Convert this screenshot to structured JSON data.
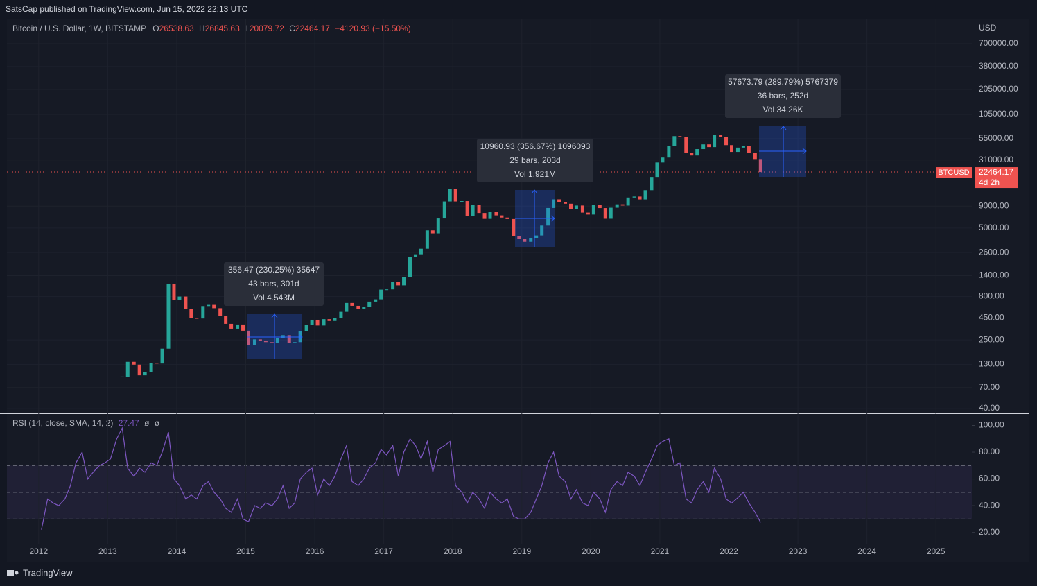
{
  "header": {
    "publisher": "SatsCap published on TradingView.com, Jun 15, 2022 22:13 UTC"
  },
  "footer": {
    "brand": "TradingView"
  },
  "chart_data": [
    {
      "type": "candlestick",
      "title": "Bitcoin / U.S. Dollar, 1W, BITSTAMP",
      "ohlc_legend": {
        "open_label": "O",
        "open": 26538.63,
        "high_label": "H",
        "high": 26845.63,
        "low_label": "L",
        "low": 20079.72,
        "close_label": "C",
        "close": 22464.17,
        "change": "−4120.93 (−15.50%)"
      },
      "currency": "USD",
      "symbol_tag": "BTCUSD",
      "last_price": 22464.17,
      "countdown": "4d 2h",
      "up_color": "#26a69a",
      "down_color": "#ef5350",
      "log_scale": true,
      "grid": true,
      "xlim": [
        2011.54,
        2025.52
      ],
      "ylim": [
        35,
        1340000
      ],
      "yticks": [
        {
          "value": 700000,
          "label": "700000.00"
        },
        {
          "value": 380000,
          "label": "380000.00"
        },
        {
          "value": 205000,
          "label": "205000.00"
        },
        {
          "value": 105000,
          "label": "105000.00"
        },
        {
          "value": 55000,
          "label": "55000.00"
        },
        {
          "value": 31000,
          "label": "31000.00"
        },
        {
          "value": 9000,
          "label": "9000.00"
        },
        {
          "value": 5000,
          "label": "5000.00"
        },
        {
          "value": 2600,
          "label": "2600.00"
        },
        {
          "value": 1400,
          "label": "1400.00"
        },
        {
          "value": 800,
          "label": "800.00"
        },
        {
          "value": 450,
          "label": "450.00"
        },
        {
          "value": 250,
          "label": "250.00"
        },
        {
          "value": 130,
          "label": "130.00"
        },
        {
          "value": 70,
          "label": "70.00"
        },
        {
          "value": 40,
          "label": "40.00"
        }
      ],
      "x": [
        2013.21,
        2013.29,
        2013.38,
        2013.46,
        2013.54,
        2013.63,
        2013.71,
        2013.79,
        2013.88,
        2013.96,
        2014.04,
        2014.13,
        2014.21,
        2014.29,
        2014.38,
        2014.46,
        2014.54,
        2014.63,
        2014.71,
        2014.79,
        2014.88,
        2014.96,
        2015.04,
        2015.13,
        2015.21,
        2015.29,
        2015.38,
        2015.46,
        2015.54,
        2015.63,
        2015.71,
        2015.79,
        2015.88,
        2015.96,
        2016.04,
        2016.13,
        2016.21,
        2016.29,
        2016.38,
        2016.46,
        2016.54,
        2016.63,
        2016.71,
        2016.79,
        2016.88,
        2016.96,
        2017.04,
        2017.13,
        2017.21,
        2017.29,
        2017.38,
        2017.46,
        2017.54,
        2017.63,
        2017.71,
        2017.79,
        2017.88,
        2017.96,
        2018.04,
        2018.13,
        2018.21,
        2018.29,
        2018.38,
        2018.46,
        2018.54,
        2018.63,
        2018.71,
        2018.79,
        2018.88,
        2018.96,
        2019.04,
        2019.13,
        2019.21,
        2019.29,
        2019.38,
        2019.46,
        2019.54,
        2019.63,
        2019.71,
        2019.79,
        2019.88,
        2019.96,
        2020.04,
        2020.13,
        2020.21,
        2020.29,
        2020.38,
        2020.46,
        2020.54,
        2020.63,
        2020.71,
        2020.79,
        2020.88,
        2020.96,
        2021.04,
        2021.13,
        2021.21,
        2021.29,
        2021.38,
        2021.46,
        2021.54,
        2021.63,
        2021.71,
        2021.79,
        2021.88,
        2021.96,
        2022.04,
        2022.13,
        2022.21,
        2022.29,
        2022.38,
        2022.46
      ],
      "values": [
        93,
        139,
        129,
        97,
        106,
        135,
        133,
        198,
        1130,
        730,
        800,
        570,
        450,
        445,
        620,
        640,
        585,
        480,
        385,
        338,
        378,
        320,
        217,
        254,
        244,
        236,
        230,
        263,
        284,
        230,
        236,
        314,
        377,
        430,
        368,
        437,
        416,
        448,
        531,
        673,
        624,
        575,
        609,
        698,
        742,
        963,
        970,
        1190,
        1080,
        1350,
        2300,
        2480,
        2875,
        4700,
        4340,
        6470,
        10200,
        14150,
        10200,
        10300,
        6900,
        9250,
        7500,
        6400,
        7730,
        7030,
        6630,
        6370,
        4040,
        3740,
        3460,
        3850,
        4100,
        5350,
        8570,
        10800,
        10080,
        9600,
        8300,
        9150,
        7570,
        7190,
        9350,
        8550,
        6420,
        8630,
        9450,
        9140,
        11350,
        11650,
        10780,
        13800,
        19700,
        28990,
        33100,
        45200,
        58800,
        57700,
        37300,
        35000,
        41500,
        47100,
        43800,
        61300,
        57000,
        46200,
        38500,
        43200,
        45500,
        37700,
        31800,
        22464.17
      ],
      "annotations": [
        {
          "lines": [
            "356.47 (230.25%) 35647",
            "43 bars, 301d",
            "Vol 4.543M"
          ]
        },
        {
          "lines": [
            "10960.93 (356.67%) 1096093",
            "29 bars, 203d",
            "Vol 1.921M"
          ]
        },
        {
          "lines": [
            "57673.79 (289.79%) 5767379",
            "36 bars, 252d",
            "Vol 34.26K"
          ]
        }
      ]
    },
    {
      "type": "line",
      "title": "RSI (14, close, SMA, 14, 2)",
      "legend_values": [
        "27.47",
        "ø",
        "ø"
      ],
      "color": "#7e57c2",
      "bands": [
        70,
        50,
        30
      ],
      "xlim": [
        2011.54,
        2025.52
      ],
      "ylim": [
        11,
        107
      ],
      "yticks": [
        {
          "value": 100,
          "label": "100.00"
        },
        {
          "value": 80,
          "label": "80.00"
        },
        {
          "value": 60,
          "label": "60.00"
        },
        {
          "value": 40,
          "label": "40.00"
        },
        {
          "value": 20,
          "label": "20.00"
        }
      ],
      "xticks": [
        2012,
        2013,
        2014,
        2015,
        2016,
        2017,
        2018,
        2019,
        2020,
        2021,
        2022,
        2023,
        2024,
        2025
      ],
      "x": [
        2012.04,
        2012.13,
        2012.21,
        2012.29,
        2012.38,
        2012.46,
        2012.54,
        2012.63,
        2012.71,
        2012.79,
        2012.88,
        2012.96,
        2013.04,
        2013.13,
        2013.21,
        2013.29,
        2013.38,
        2013.46,
        2013.54,
        2013.63,
        2013.71,
        2013.79,
        2013.88,
        2013.96,
        2014.04,
        2014.13,
        2014.21,
        2014.29,
        2014.38,
        2014.46,
        2014.54,
        2014.63,
        2014.71,
        2014.79,
        2014.88,
        2014.96,
        2015.04,
        2015.13,
        2015.21,
        2015.29,
        2015.38,
        2015.46,
        2015.54,
        2015.63,
        2015.71,
        2015.79,
        2015.88,
        2015.96,
        2016.04,
        2016.13,
        2016.21,
        2016.29,
        2016.38,
        2016.46,
        2016.54,
        2016.63,
        2016.71,
        2016.79,
        2016.88,
        2016.96,
        2017.04,
        2017.13,
        2017.21,
        2017.29,
        2017.38,
        2017.46,
        2017.54,
        2017.63,
        2017.71,
        2017.79,
        2017.88,
        2017.96,
        2018.04,
        2018.13,
        2018.21,
        2018.29,
        2018.38,
        2018.46,
        2018.54,
        2018.63,
        2018.71,
        2018.79,
        2018.88,
        2018.96,
        2019.04,
        2019.13,
        2019.21,
        2019.29,
        2019.38,
        2019.46,
        2019.54,
        2019.63,
        2019.71,
        2019.79,
        2019.88,
        2019.96,
        2020.04,
        2020.13,
        2020.21,
        2020.29,
        2020.38,
        2020.46,
        2020.54,
        2020.63,
        2020.71,
        2020.79,
        2020.88,
        2020.96,
        2021.04,
        2021.13,
        2021.21,
        2021.29,
        2021.38,
        2021.46,
        2021.54,
        2021.63,
        2021.71,
        2021.79,
        2021.88,
        2021.96,
        2022.04,
        2022.13,
        2022.21,
        2022.29,
        2022.38,
        2022.46
      ],
      "values": [
        22,
        45,
        42,
        40,
        45,
        55,
        72,
        80,
        60,
        65,
        70,
        72,
        75,
        90,
        98,
        68,
        62,
        68,
        65,
        72,
        70,
        80,
        95,
        60,
        55,
        45,
        48,
        45,
        55,
        58,
        50,
        45,
        38,
        35,
        45,
        30,
        28,
        40,
        38,
        42,
        40,
        45,
        55,
        38,
        42,
        60,
        65,
        68,
        48,
        60,
        55,
        62,
        75,
        85,
        58,
        55,
        60,
        68,
        72,
        82,
        78,
        85,
        62,
        80,
        90,
        85,
        75,
        88,
        65,
        82,
        85,
        88,
        55,
        50,
        42,
        50,
        45,
        38,
        50,
        45,
        42,
        45,
        32,
        30,
        30,
        35,
        45,
        55,
        72,
        80,
        62,
        58,
        45,
        52,
        42,
        40,
        50,
        45,
        35,
        52,
        58,
        55,
        65,
        62,
        55,
        65,
        75,
        85,
        88,
        90,
        70,
        72,
        45,
        42,
        52,
        58,
        50,
        68,
        60,
        45,
        42,
        46,
        50,
        42,
        35,
        27.47
      ]
    }
  ]
}
